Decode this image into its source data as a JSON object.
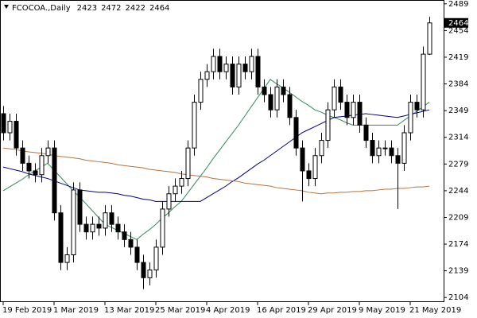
{
  "chart_data": {
    "type": "candlestick",
    "title": "FCOCOA.,Daily",
    "categories": [
      "19 Feb 2019",
      null,
      null,
      null,
      null,
      null,
      null,
      null,
      "1 Mar 2019",
      null,
      null,
      null,
      null,
      null,
      null,
      null,
      "13 Mar 2019",
      null,
      null,
      null,
      null,
      null,
      null,
      null,
      "25 Mar 2019",
      null,
      null,
      null,
      null,
      null,
      null,
      null,
      "4 Apr 2019",
      null,
      null,
      null,
      null,
      null,
      null,
      null,
      "16 Apr 2019",
      null,
      null,
      null,
      null,
      null,
      null,
      null,
      "29 Apr 2019",
      null,
      null,
      null,
      null,
      null,
      null,
      null,
      "9 May 2019",
      null,
      null,
      null,
      null,
      null,
      null,
      null,
      "21 May 2019",
      null,
      null,
      null
    ],
    "open": [
      2345,
      2320,
      2335,
      2300,
      2280,
      2270,
      2265,
      2290,
      2300,
      2215,
      2150,
      2160,
      2245,
      2200,
      2190,
      2200,
      2195,
      2215,
      2200,
      2190,
      2180,
      2170,
      2150,
      2130,
      2140,
      2170,
      2220,
      2240,
      2250,
      2260,
      2300,
      2360,
      2390,
      2400,
      2420,
      2400,
      2410,
      2380,
      2410,
      2400,
      2420,
      2380,
      2370,
      2350,
      2380,
      2370,
      2340,
      2300,
      2270,
      2260,
      2290,
      2310,
      2350,
      2380,
      2360,
      2340,
      2360,
      2330,
      2310,
      2290,
      2300,
      2300,
      2290,
      2280,
      2320,
      2360,
      2350,
      2423
    ],
    "high": [
      2355,
      2345,
      2345,
      2310,
      2290,
      2280,
      2300,
      2310,
      2310,
      2225,
      2170,
      2255,
      2255,
      2210,
      2210,
      2210,
      2225,
      2225,
      2210,
      2200,
      2190,
      2180,
      2160,
      2150,
      2180,
      2230,
      2250,
      2260,
      2270,
      2310,
      2370,
      2400,
      2410,
      2430,
      2430,
      2420,
      2420,
      2420,
      2420,
      2430,
      2430,
      2390,
      2380,
      2390,
      2390,
      2380,
      2350,
      2310,
      2280,
      2300,
      2320,
      2360,
      2390,
      2390,
      2370,
      2370,
      2370,
      2340,
      2320,
      2310,
      2310,
      2310,
      2300,
      2330,
      2370,
      2370,
      2433,
      2472
    ],
    "low": [
      2310,
      2310,
      2290,
      2270,
      2260,
      2255,
      2255,
      2280,
      2205,
      2140,
      2140,
      2150,
      2190,
      2180,
      2180,
      2185,
      2185,
      2190,
      2180,
      2170,
      2160,
      2140,
      2115,
      2120,
      2130,
      2160,
      2210,
      2230,
      2240,
      2250,
      2290,
      2350,
      2380,
      2390,
      2390,
      2390,
      2370,
      2370,
      2390,
      2390,
      2370,
      2360,
      2340,
      2340,
      2360,
      2330,
      2290,
      2230,
      2250,
      2250,
      2280,
      2300,
      2340,
      2350,
      2330,
      2330,
      2320,
      2300,
      2280,
      2280,
      2290,
      2280,
      2220,
      2270,
      2310,
      2340,
      2340,
      2422
    ],
    "close": [
      2320,
      2335,
      2300,
      2280,
      2270,
      2265,
      2290,
      2300,
      2215,
      2150,
      2160,
      2245,
      2200,
      2190,
      2200,
      2195,
      2215,
      2200,
      2190,
      2180,
      2170,
      2150,
      2130,
      2140,
      2170,
      2220,
      2240,
      2250,
      2260,
      2300,
      2360,
      2390,
      2400,
      2420,
      2400,
      2410,
      2380,
      2410,
      2400,
      2420,
      2380,
      2370,
      2350,
      2380,
      2370,
      2340,
      2300,
      2270,
      2260,
      2290,
      2310,
      2350,
      2380,
      2360,
      2340,
      2360,
      2330,
      2310,
      2290,
      2300,
      2300,
      2290,
      2280,
      2320,
      2360,
      2350,
      2423,
      2464
    ],
    "overlays": [
      {
        "color": "#2e8b57",
        "values": [
          2244,
          2249,
          2254,
          2259,
          2265,
          2270,
          2275,
          2280,
          2271,
          2262,
          2253,
          2244,
          2236,
          2227,
          2218,
          2209,
          2200,
          2196,
          2192,
          2188,
          2184,
          2180,
          2187,
          2193,
          2200,
          2208,
          2215,
          2223,
          2230,
          2241,
          2252,
          2263,
          2274,
          2286,
          2297,
          2308,
          2319,
          2330,
          2342,
          2354,
          2366,
          2378,
          2390,
          2384,
          2379,
          2373,
          2367,
          2361,
          2356,
          2350,
          2347,
          2343,
          2340,
          2337,
          2333,
          2330,
          2330,
          2330,
          2330,
          2330,
          2330,
          2330,
          2330,
          2336,
          2342,
          2348,
          2354,
          2360
        ]
      },
      {
        "color": "#00008b",
        "values": [
          2275,
          2273,
          2271,
          2269,
          2266,
          2264,
          2262,
          2260,
          2257,
          2254,
          2251,
          2248,
          2245,
          2244,
          2243,
          2242,
          2242,
          2241,
          2240,
          2238,
          2237,
          2235,
          2233,
          2232,
          2230,
          2230,
          2230,
          2230,
          2230,
          2230,
          2230,
          2230,
          2235,
          2240,
          2245,
          2250,
          2256,
          2261,
          2267,
          2273,
          2279,
          2284,
          2290,
          2296,
          2302,
          2308,
          2314,
          2320,
          2324,
          2328,
          2332,
          2336,
          2340,
          2341,
          2342,
          2343,
          2344,
          2345,
          2344,
          2343,
          2342,
          2341,
          2340,
          2342,
          2344,
          2346,
          2348,
          2350
        ]
      },
      {
        "color": "#b8733a",
        "values": [
          2300,
          2299,
          2298,
          2296,
          2295,
          2294,
          2293,
          2292,
          2290,
          2289,
          2288,
          2287,
          2286,
          2284,
          2283,
          2282,
          2281,
          2280,
          2278,
          2277,
          2276,
          2275,
          2274,
          2272,
          2271,
          2270,
          2269,
          2268,
          2266,
          2265,
          2264,
          2263,
          2262,
          2260,
          2259,
          2258,
          2257,
          2256,
          2254,
          2253,
          2252,
          2251,
          2250,
          2248,
          2247,
          2246,
          2245,
          2244,
          2242,
          2241,
          2240,
          2241,
          2241,
          2242,
          2242,
          2243,
          2243,
          2244,
          2244,
          2245,
          2246,
          2246,
          2247,
          2247,
          2248,
          2249,
          2249,
          2250
        ]
      }
    ],
    "ylim": [
      2098,
      2494
    ],
    "yticks": [
      2104,
      2139,
      2174,
      2209,
      2244,
      2279,
      2314,
      2349,
      2384,
      2419,
      2454,
      2489
    ],
    "grid": false
  }
}
